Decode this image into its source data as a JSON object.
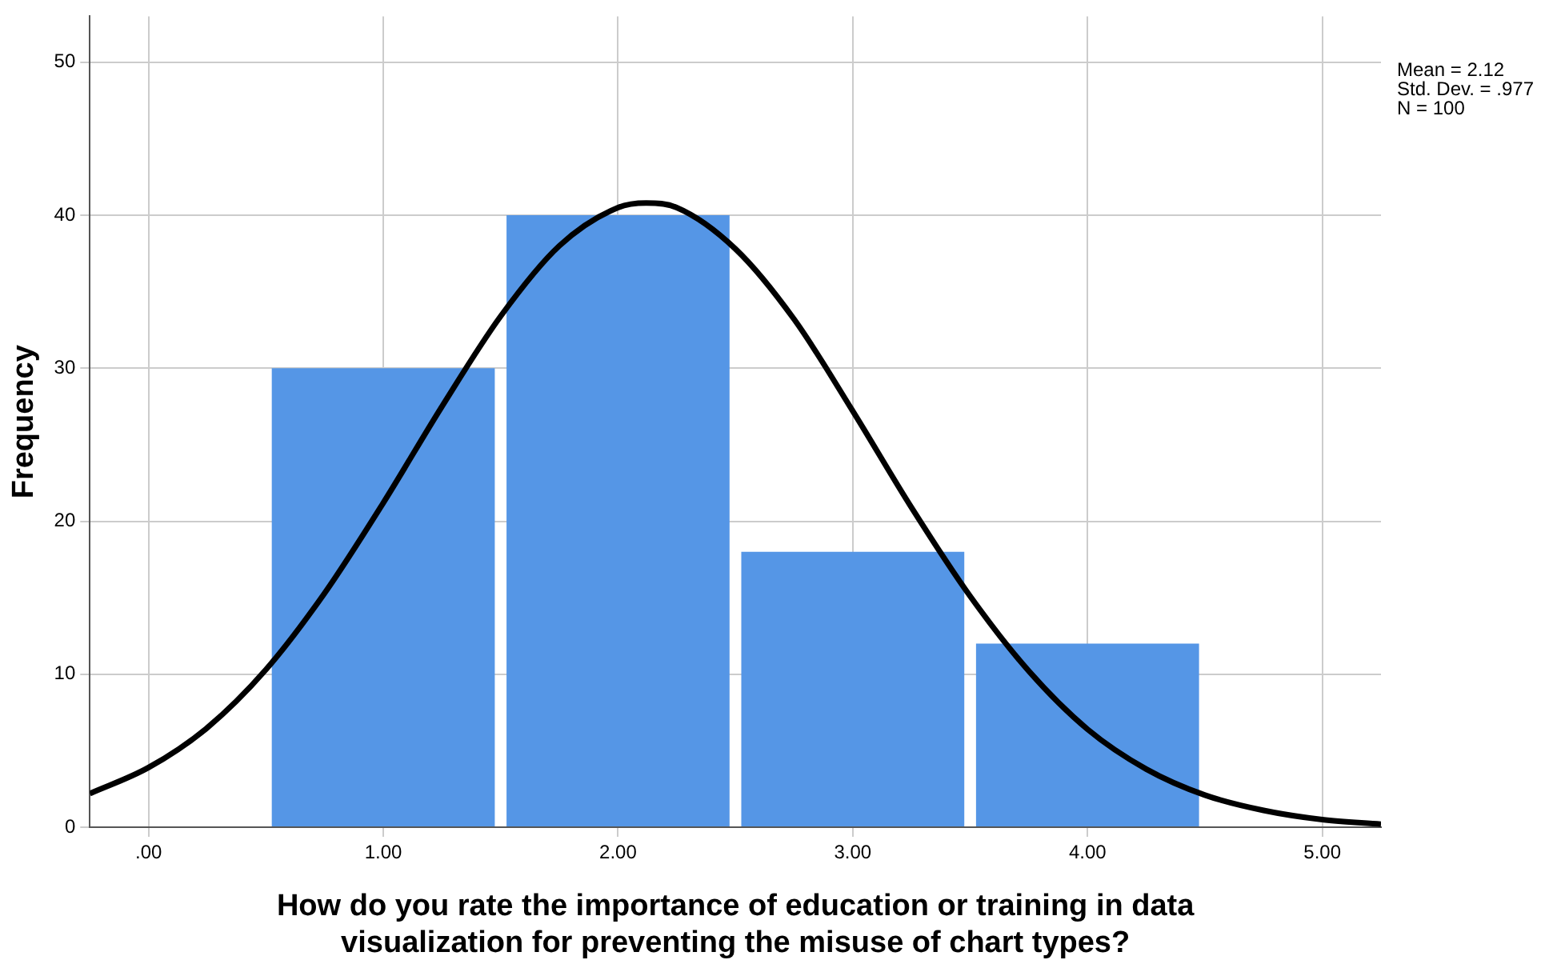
{
  "chart_data": {
    "type": "histogram",
    "xlabel": "How do you rate the importance of education or training in data visualization for preventing the misuse of chart types?",
    "ylabel": "Frequency",
    "bins": [
      0.5,
      1.5,
      2.5,
      3.5,
      4.5
    ],
    "values": [
      30,
      40,
      18,
      12
    ],
    "color": "#5596e6",
    "series": [
      {
        "type": "line",
        "color": "#000000",
        "x": [
          -0.25,
          0,
          0.25,
          0.5,
          0.75,
          1,
          1.25,
          1.5,
          1.75,
          2,
          2.12,
          2.25,
          2.5,
          2.75,
          3,
          3.25,
          3.5,
          3.75,
          4,
          4.25,
          4.5,
          4.75,
          5,
          5.25
        ],
        "values": [
          2.2,
          3.9,
          6.5,
          10.3,
          15.3,
          21.2,
          27.5,
          33.4,
          38,
          40.5,
          40.8,
          40.5,
          37.8,
          33.2,
          27.2,
          20.9,
          15.1,
          10.2,
          6.4,
          3.8,
          2.1,
          1.1,
          0.5,
          0.2
        ]
      }
    ],
    "xlim": [
      -0.25,
      5.25
    ],
    "xticks": [
      {
        "value": 0,
        "label": ".00"
      },
      {
        "value": 1,
        "label": "1.00"
      },
      {
        "value": 2,
        "label": "2.00"
      },
      {
        "value": 3,
        "label": "3.00"
      },
      {
        "value": 4,
        "label": "4.00"
      },
      {
        "value": 5,
        "label": "5.00"
      }
    ],
    "ylim": [
      0,
      53
    ],
    "yticks": [
      0,
      10,
      20,
      30,
      40,
      50
    ],
    "grid": true,
    "legend": false,
    "marker": "none",
    "annotations": [
      "Mean = 2.12",
      "Std. Dev. = .977",
      "N = 100"
    ]
  }
}
